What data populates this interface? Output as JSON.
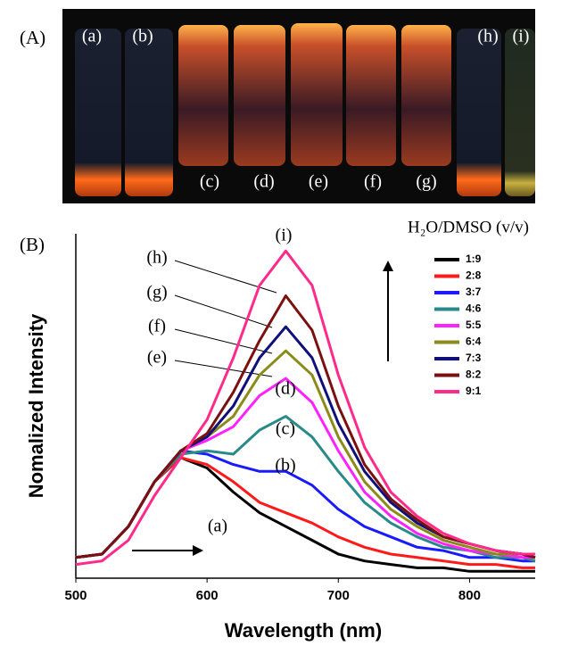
{
  "panel_a": {
    "label": "(A)",
    "vial_labels": [
      "(a)",
      "(b)",
      "(c)",
      "(d)",
      "(e)",
      "(f)",
      "(g)",
      "(h)",
      "(i)"
    ]
  },
  "chart_data": {
    "type": "line",
    "panel_label": "(B)",
    "x_label": "Wavelength (nm)",
    "y_label": "Nomalized Intensity",
    "legend_title": "H₂O/DMSO (v/v)",
    "legend_position": "upper right",
    "annotations": [
      "(a)",
      "(b)",
      "(c)",
      "(d)",
      "(e)",
      "(f)",
      "(g)",
      "(h)",
      "(i)"
    ],
    "xlim": [
      500,
      850
    ],
    "xticks": [
      500,
      600,
      700,
      800
    ],
    "ylim": [
      0,
      100
    ],
    "x": [
      500,
      520,
      540,
      560,
      580,
      600,
      620,
      640,
      660,
      680,
      700,
      720,
      740,
      760,
      780,
      800,
      820,
      840,
      850
    ],
    "series": [
      {
        "name": "1:9",
        "color": "#000000",
        "values": [
          6,
          7,
          15,
          28,
          35,
          32,
          25,
          19,
          15,
          11,
          7,
          5,
          4,
          3,
          3,
          2,
          2,
          2,
          2
        ]
      },
      {
        "name": "2:8",
        "color": "#ff1a1a",
        "values": [
          6,
          7,
          15,
          28,
          35,
          33,
          28,
          22,
          19,
          16,
          12,
          9,
          7,
          6,
          5,
          4,
          4,
          3,
          3
        ]
      },
      {
        "name": "3:7",
        "color": "#1a1aff",
        "values": [
          6,
          7,
          15,
          28,
          37,
          36,
          33,
          31,
          31,
          27,
          20,
          15,
          12,
          9,
          8,
          6,
          6,
          5,
          5
        ]
      },
      {
        "name": "4:6",
        "color": "#2a8a8a",
        "values": [
          6,
          7,
          15,
          28,
          36,
          37,
          36,
          43,
          47,
          41,
          31,
          22,
          16,
          12,
          9,
          8,
          6,
          6,
          5
        ]
      },
      {
        "name": "5:5",
        "color": "#ff22ff",
        "values": [
          6,
          7,
          15,
          28,
          37,
          40,
          44,
          53,
          58,
          51,
          37,
          25,
          18,
          13,
          10,
          8,
          7,
          6,
          6
        ]
      },
      {
        "name": "6:4",
        "color": "#8b8b1a",
        "values": [
          6,
          7,
          15,
          28,
          37,
          41,
          47,
          59,
          66,
          59,
          41,
          28,
          20,
          15,
          11,
          9,
          7,
          7,
          6
        ]
      },
      {
        "name": "7:3",
        "color": "#10107a",
        "values": [
          6,
          7,
          15,
          28,
          37,
          41,
          50,
          64,
          73,
          64,
          45,
          31,
          22,
          16,
          12,
          10,
          8,
          7,
          6
        ]
      },
      {
        "name": "8:2",
        "color": "#7a1010",
        "values": [
          6,
          7,
          15,
          28,
          37,
          42,
          54,
          69,
          82,
          72,
          50,
          33,
          23,
          17,
          12,
          10,
          8,
          7,
          6
        ]
      },
      {
        "name": "9:1",
        "color": "#ff2a8a",
        "values": [
          4,
          5,
          11,
          24,
          35,
          46,
          64,
          85,
          95,
          85,
          59,
          38,
          25,
          18,
          13,
          10,
          8,
          7,
          7
        ]
      }
    ]
  }
}
